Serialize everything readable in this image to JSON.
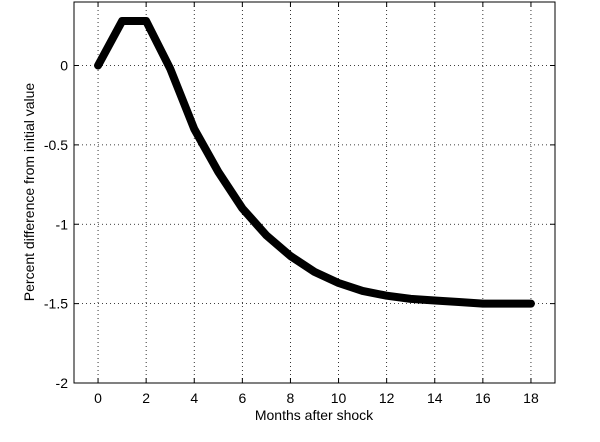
{
  "chart_data": {
    "type": "line",
    "xlabel": "Months after shock",
    "ylabel": "Percent difference from initial value",
    "x": [
      0,
      1,
      2,
      3,
      4,
      5,
      6,
      7,
      8,
      9,
      10,
      11,
      12,
      13,
      14,
      15,
      16,
      17,
      18
    ],
    "series": [
      {
        "color": "#000000",
        "values": [
          0,
          0.28,
          0.28,
          -0.02,
          -0.4,
          -0.67,
          -0.9,
          -1.07,
          -1.2,
          -1.3,
          -1.37,
          -1.42,
          -1.45,
          -1.47,
          -1.48,
          -1.49,
          -1.5,
          -1.5,
          -1.5
        ]
      }
    ],
    "xlim": [
      -1,
      19
    ],
    "xticks": [
      0,
      2,
      4,
      6,
      8,
      10,
      12,
      14,
      16,
      18
    ],
    "ylim": [
      -2,
      0.4
    ],
    "yticks": [
      -2,
      -1.5,
      -1,
      -0.5,
      0
    ],
    "grid": true
  }
}
